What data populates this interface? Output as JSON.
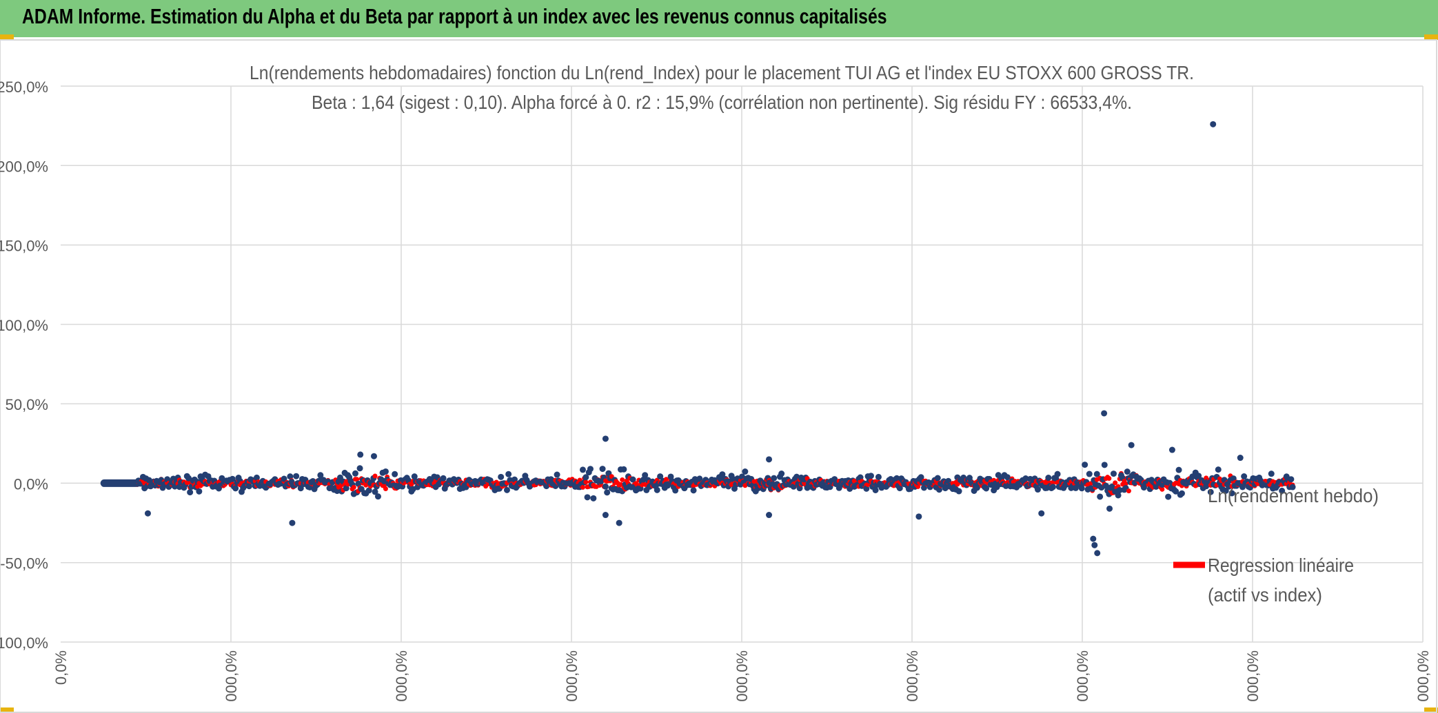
{
  "header": {
    "title": "ADAM Informe. Estimation du Alpha et du Beta par rapport à un index avec les revenus connus capitalisés"
  },
  "chart_data": {
    "type": "scatter",
    "title": "Ln(rendements hebdomadaires) fonction du Ln(rend_Index) pour le placement TUI AG et l'index EU STOXX 600 GROSS TR.",
    "subtitle": "Beta : 1,64 (sigest : 0,10). Alpha forcé à 0. r2 : 15,9% (corrélation non pertinente). Sig résidu FY : 66533,4%.",
    "ylim": [
      -100,
      250
    ],
    "y_ticks": [
      "250,0%",
      "200,0%",
      "150,0%",
      "100,0%",
      "50,0%",
      "0,0%",
      "-50,0%",
      "-100,0%"
    ],
    "x_ticks": [
      "0,0%",
      "000,0%",
      "000,0%",
      "000,0%",
      "000,0%",
      "000,0%",
      "000,0%",
      "000,0%",
      "000,0%"
    ],
    "grid": true,
    "legend_position": "right",
    "colors": {
      "series": "#243f72",
      "regression": "#ff0000",
      "title_bar": "#7ec97e",
      "grid": "#d9d9d9"
    },
    "series": [
      {
        "name": "Ln(rendement hebdo)",
        "points_note": "dense band around 0% with outliers",
        "outliers": [
          {
            "x_frac": 0.846,
            "y": 226
          },
          {
            "x_frac": 0.766,
            "y": 44
          },
          {
            "x_frac": 0.4,
            "y": 28
          },
          {
            "x_frac": 0.786,
            "y": 24
          },
          {
            "x_frac": 0.816,
            "y": 21
          },
          {
            "x_frac": 0.22,
            "y": 18
          },
          {
            "x_frac": 0.23,
            "y": 17
          },
          {
            "x_frac": 0.52,
            "y": 15
          },
          {
            "x_frac": 0.866,
            "y": 16
          },
          {
            "x_frac": 0.17,
            "y": -25
          },
          {
            "x_frac": 0.41,
            "y": -25
          },
          {
            "x_frac": 0.761,
            "y": -44
          },
          {
            "x_frac": 0.759,
            "y": -39
          },
          {
            "x_frac": 0.758,
            "y": -35
          },
          {
            "x_frac": 0.4,
            "y": -20
          },
          {
            "x_frac": 0.52,
            "y": -20
          },
          {
            "x_frac": 0.63,
            "y": -21
          },
          {
            "x_frac": 0.72,
            "y": -19
          },
          {
            "x_frac": 0.064,
            "y": -19
          },
          {
            "x_frac": 0.77,
            "y": -16
          }
        ]
      },
      {
        "name": "Regression linéaire (actif vs index)",
        "beta": 1.64,
        "alpha": 0
      }
    ],
    "legend": [
      {
        "label": "Ln(rendement hebdo)"
      },
      {
        "label_line1": "Regression linéaire",
        "label_line2": "(actif vs index)"
      }
    ]
  }
}
